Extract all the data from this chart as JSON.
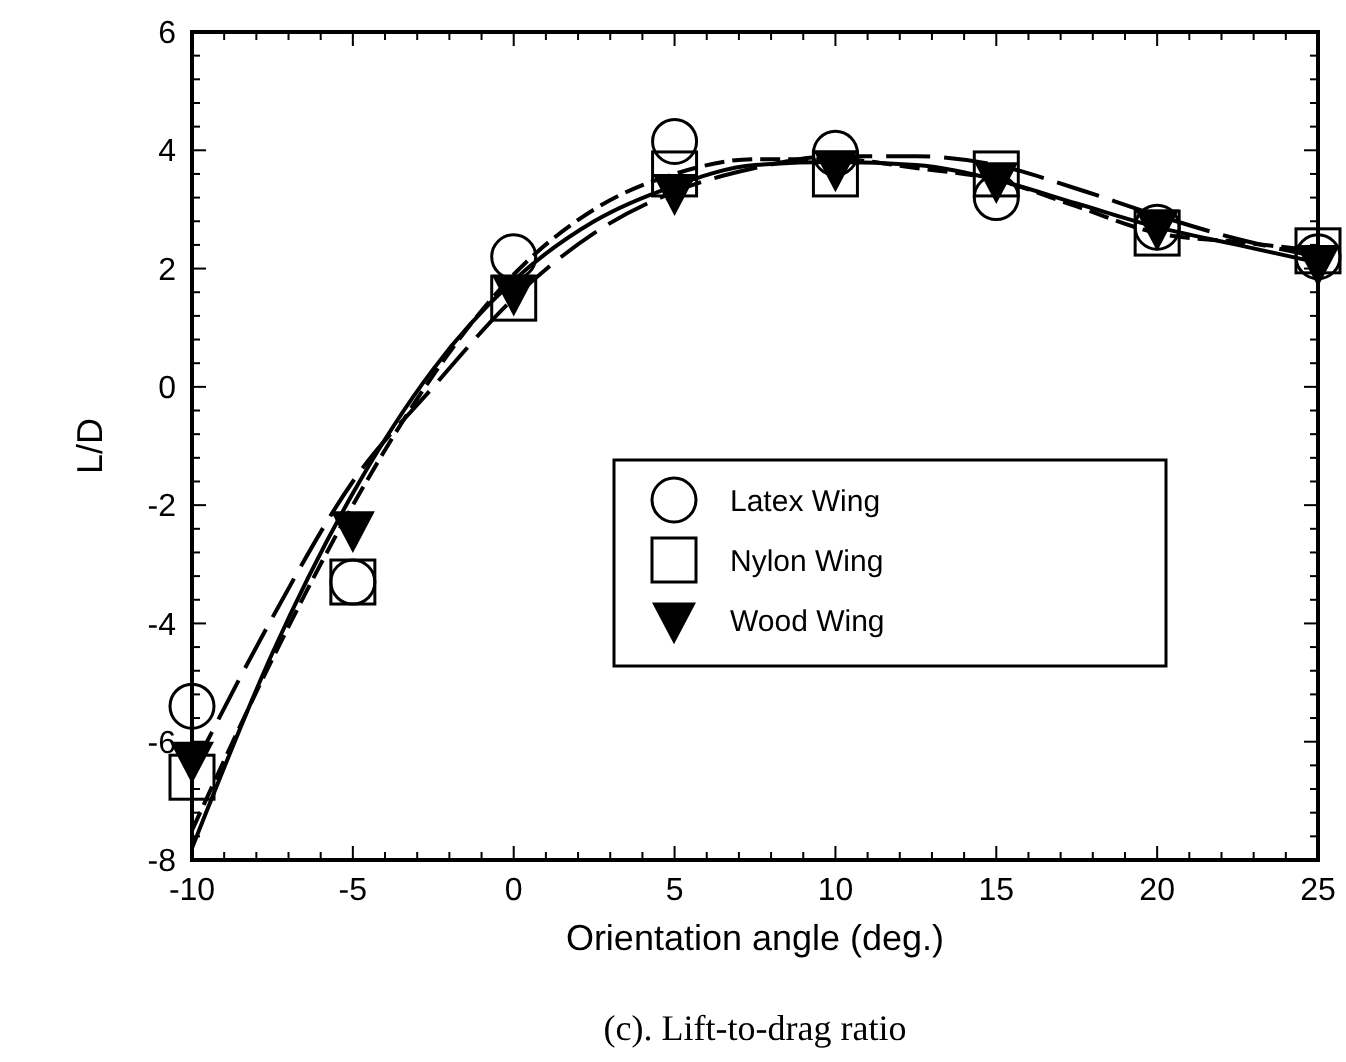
{
  "chart_data": {
    "type": "scatter",
    "xlabel": "Orientation angle (deg.)",
    "ylabel": "L/D",
    "annotations": [
      "(c). Lift-to-drag ratio"
    ],
    "x": [
      -10,
      -5,
      0,
      5,
      10,
      15,
      20,
      25
    ],
    "xlim": [
      -10,
      25
    ],
    "xticks": [
      -10,
      -5,
      0,
      5,
      10,
      15,
      20,
      25
    ],
    "ylim": [
      -8,
      6
    ],
    "yticks": [
      -8,
      -6,
      -4,
      -2,
      0,
      2,
      4,
      6
    ],
    "grid": false,
    "legend": "right",
    "series": [
      {
        "name": "Latex Wing",
        "color": "#000000",
        "marker": "circle",
        "values": [
          -5.4,
          -3.3,
          2.2,
          4.15,
          3.95,
          3.2,
          2.7,
          2.2
        ]
      },
      {
        "name": "Nylon Wing",
        "color": "#000000",
        "marker": "square",
        "values": [
          -6.6,
          -3.3,
          1.5,
          3.6,
          3.6,
          3.6,
          2.6,
          2.3
        ]
      },
      {
        "name": "Wood Wing",
        "color": "#000000",
        "marker": "triangle",
        "values": [
          -6.3,
          -2.4,
          1.6,
          3.3,
          3.7,
          3.5,
          2.7,
          2.1
        ]
      },
      {
        "type": "line",
        "color": "#000000",
        "marker": "none",
        "line_style": "solid",
        "x": [
          -10,
          -7.5,
          -5,
          -2.5,
          0,
          2.5,
          5,
          7.5,
          10,
          12.5,
          15,
          17.5,
          20,
          22.5,
          25
        ],
        "values": [
          -7.8,
          -4.5,
          -1.8,
          0.3,
          1.8,
          2.8,
          3.4,
          3.75,
          3.8,
          3.75,
          3.5,
          3.1,
          2.7,
          2.4,
          2.1
        ]
      },
      {
        "type": "line",
        "color": "#000000",
        "marker": "none",
        "line_style": "dashed",
        "x": [
          -10,
          -7.5,
          -5,
          -2.5,
          0,
          2.5,
          5,
          7.5,
          10,
          12.5,
          15,
          17.5,
          20,
          22.5,
          25
        ],
        "values": [
          -7.5,
          -4.6,
          -2,
          0.2,
          1.9,
          3,
          3.6,
          3.85,
          3.85,
          3.7,
          3.5,
          3.05,
          2.6,
          2.45,
          2.3
        ]
      },
      {
        "type": "line",
        "color": "#000000",
        "marker": "none",
        "line_style": "long-dashed",
        "x": [
          -10,
          -7.5,
          -5,
          -2.5,
          0,
          2.5,
          5,
          7.5,
          10,
          12.5,
          15,
          17.5,
          20,
          22.5,
          25
        ],
        "values": [
          -6.5,
          -3.9,
          -1.6,
          0,
          1.5,
          2.6,
          3.3,
          3.7,
          3.9,
          3.9,
          3.75,
          3.35,
          2.9,
          2.5,
          2.2
        ]
      }
    ]
  }
}
